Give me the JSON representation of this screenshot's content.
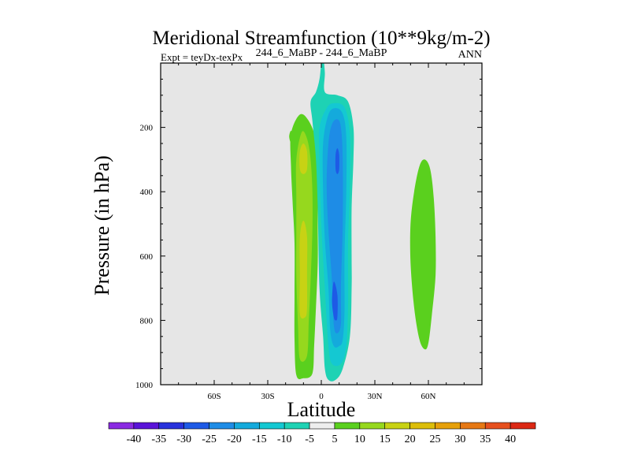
{
  "chart_data": {
    "type": "contour",
    "title": "Meridional Streamfunction (10**9kg/m-2)",
    "subtitle_left": "Expt = teyDx-texPx",
    "subtitle_center": "244_6_MaBP - 244_6_MaBP",
    "subtitle_right": "ANN",
    "xlabel": "Latitude",
    "ylabel": "Pressure (in hPa)",
    "xlim": [
      -90,
      90
    ],
    "ylim": [
      0,
      1000
    ],
    "y_inverted": true,
    "x_ticks": [
      {
        "value": -60,
        "label": "60S"
      },
      {
        "value": -30,
        "label": "30S"
      },
      {
        "value": 0,
        "label": "0"
      },
      {
        "value": 30,
        "label": "30N"
      },
      {
        "value": 60,
        "label": "60N"
      }
    ],
    "y_ticks": [
      {
        "value": 200,
        "label": "200"
      },
      {
        "value": 400,
        "label": "400"
      },
      {
        "value": 600,
        "label": "600"
      },
      {
        "value": 800,
        "label": "800"
      },
      {
        "value": 1000,
        "label": "1000"
      }
    ],
    "background_color": "#e6e6e6",
    "colorbar": {
      "labels": [
        "-40",
        "-35",
        "-30",
        "-25",
        "-20",
        "-15",
        "-10",
        "-5",
        "5",
        "10",
        "15",
        "20",
        "25",
        "30",
        "35",
        "40"
      ],
      "colors": [
        "#8a2be2",
        "#5a14d8",
        "#2832dc",
        "#1e5ae6",
        "#1e8ce6",
        "#14aadc",
        "#14c8d2",
        "#1ed2b4",
        "#eeeeee",
        "#5ad01e",
        "#96d81e",
        "#c8d214",
        "#dcbe0a",
        "#e6a00a",
        "#e67814",
        "#e6501e",
        "#dc2814"
      ]
    },
    "features": [
      {
        "name": "cell-tiny-green",
        "type": "filled-contour",
        "level": "5 to 10",
        "color": "#5ad01e",
        "points": [
          [
            -18,
            228
          ],
          [
            -17,
            210
          ],
          [
            -16,
            228
          ],
          [
            -17,
            248
          ]
        ]
      },
      {
        "name": "cell-sh-green",
        "type": "filled-contour",
        "level": "5 to 10",
        "color": "#5ad01e",
        "points": [
          [
            -12,
            160
          ],
          [
            -7,
            180
          ],
          [
            -3,
            240
          ],
          [
            -2,
            330
          ],
          [
            -2,
            400
          ],
          [
            -2,
            500
          ],
          [
            -2,
            620
          ],
          [
            -3,
            760
          ],
          [
            -4,
            880
          ],
          [
            -5,
            965
          ],
          [
            -10,
            980
          ],
          [
            -14,
            970
          ],
          [
            -15,
            860
          ],
          [
            -15,
            720
          ],
          [
            -15,
            560
          ],
          [
            -16,
            440
          ],
          [
            -17,
            320
          ],
          [
            -17,
            220
          ]
        ]
      },
      {
        "name": "cell-sh-lightgreen",
        "type": "filled-contour",
        "level": "10 to 15",
        "color": "#96d81e",
        "points": [
          [
            -11,
            215
          ],
          [
            -8,
            235
          ],
          [
            -6,
            300
          ],
          [
            -5,
            400
          ],
          [
            -5,
            520
          ],
          [
            -6,
            680
          ],
          [
            -7,
            800
          ],
          [
            -8,
            910
          ],
          [
            -12,
            920
          ],
          [
            -13,
            820
          ],
          [
            -14,
            660
          ],
          [
            -14,
            540
          ],
          [
            -14,
            420
          ],
          [
            -14,
            300
          ]
        ]
      },
      {
        "name": "cell-sh-yellow-upper",
        "type": "filled-contour",
        "level": "15 to 20",
        "color": "#c8d214",
        "points": [
          [
            -10,
            250
          ],
          [
            -8,
            275
          ],
          [
            -8,
            330
          ],
          [
            -10,
            345
          ],
          [
            -12,
            330
          ],
          [
            -12,
            275
          ]
        ]
      },
      {
        "name": "cell-sh-yellow-lower",
        "type": "filled-contour",
        "level": "15 to 20",
        "color": "#c8d214",
        "points": [
          [
            -10,
            490
          ],
          [
            -8,
            540
          ],
          [
            -8,
            650
          ],
          [
            -8,
            760
          ],
          [
            -9,
            790
          ],
          [
            -12,
            780
          ],
          [
            -12,
            660
          ],
          [
            -12,
            540
          ]
        ]
      },
      {
        "name": "cell-nh-teal",
        "type": "filled-contour",
        "level": "-5 to -10",
        "color": "#1ed2b4",
        "points": [
          [
            1,
            -18
          ],
          [
            2,
            30
          ],
          [
            2,
            90
          ],
          [
            9,
            100
          ],
          [
            15,
            120
          ],
          [
            18,
            200
          ],
          [
            18,
            300
          ],
          [
            17,
            450
          ],
          [
            17,
            600
          ],
          [
            17,
            700
          ],
          [
            16,
            850
          ],
          [
            12,
            950
          ],
          [
            8,
            985
          ],
          [
            4,
            985
          ],
          [
            2,
            950
          ],
          [
            1,
            850
          ],
          [
            -1,
            700
          ],
          [
            -2,
            450
          ],
          [
            -3,
            300
          ],
          [
            -5,
            180
          ],
          [
            -6,
            120
          ],
          [
            -3,
            90
          ],
          [
            -1,
            50
          ],
          [
            0,
            0
          ]
        ]
      },
      {
        "name": "cell-nh-cyan",
        "type": "filled-contour",
        "level": "-10 to -15",
        "color": "#14c8d2",
        "points": [
          [
            7,
            125
          ],
          [
            13,
            138
          ],
          [
            16,
            220
          ],
          [
            16,
            380
          ],
          [
            15,
            560
          ],
          [
            15,
            750
          ],
          [
            14,
            880
          ],
          [
            11,
            935
          ],
          [
            6,
            935
          ],
          [
            4,
            880
          ],
          [
            2,
            700
          ],
          [
            0,
            500
          ],
          [
            -1,
            300
          ],
          [
            -1,
            200
          ],
          [
            3,
            140
          ]
        ]
      },
      {
        "name": "cell-nh-sky",
        "type": "filled-contour",
        "level": "-15 to -20",
        "color": "#14aadc",
        "points": [
          [
            8,
            140
          ],
          [
            12,
            158
          ],
          [
            14,
            230
          ],
          [
            14,
            400
          ],
          [
            13,
            600
          ],
          [
            13,
            770
          ],
          [
            12,
            860
          ],
          [
            10,
            880
          ],
          [
            7,
            880
          ],
          [
            5,
            830
          ],
          [
            4,
            700
          ],
          [
            2,
            550
          ],
          [
            1,
            400
          ],
          [
            1,
            250
          ],
          [
            4,
            160
          ]
        ]
      },
      {
        "name": "cell-nh-blue",
        "type": "filled-contour",
        "level": "-20 to -25",
        "color": "#1e8ce6",
        "points": [
          [
            9,
            175
          ],
          [
            11,
            200
          ],
          [
            12,
            300
          ],
          [
            12,
            500
          ],
          [
            11,
            700
          ],
          [
            11,
            810
          ],
          [
            9,
            840
          ],
          [
            7,
            815
          ],
          [
            6,
            680
          ],
          [
            4,
            520
          ],
          [
            3,
            380
          ],
          [
            4,
            250
          ],
          [
            6,
            190
          ]
        ]
      },
      {
        "name": "cell-nh-deepblue-upper",
        "type": "filled-contour",
        "level": "-25 to -30",
        "color": "#1e5ae6",
        "points": [
          [
            9,
            265
          ],
          [
            10,
            285
          ],
          [
            10,
            330
          ],
          [
            9,
            345
          ],
          [
            8,
            330
          ],
          [
            8,
            285
          ]
        ]
      },
      {
        "name": "cell-nh-deepblue-lower",
        "type": "filled-contour",
        "level": "-25 to -30",
        "color": "#1e5ae6",
        "points": [
          [
            7,
            680
          ],
          [
            9,
            720
          ],
          [
            9,
            790
          ],
          [
            8,
            800
          ],
          [
            7,
            790
          ],
          [
            6,
            740
          ]
        ]
      },
      {
        "name": "cell-60n-green",
        "type": "filled-contour",
        "level": "5 to 10",
        "color": "#5ad01e",
        "points": [
          [
            58,
            300
          ],
          [
            61,
            330
          ],
          [
            63,
            420
          ],
          [
            64,
            540
          ],
          [
            64,
            660
          ],
          [
            62,
            780
          ],
          [
            60,
            870
          ],
          [
            58,
            890
          ],
          [
            55,
            860
          ],
          [
            52,
            760
          ],
          [
            50,
            620
          ],
          [
            50,
            500
          ],
          [
            52,
            400
          ],
          [
            55,
            320
          ]
        ]
      }
    ]
  }
}
